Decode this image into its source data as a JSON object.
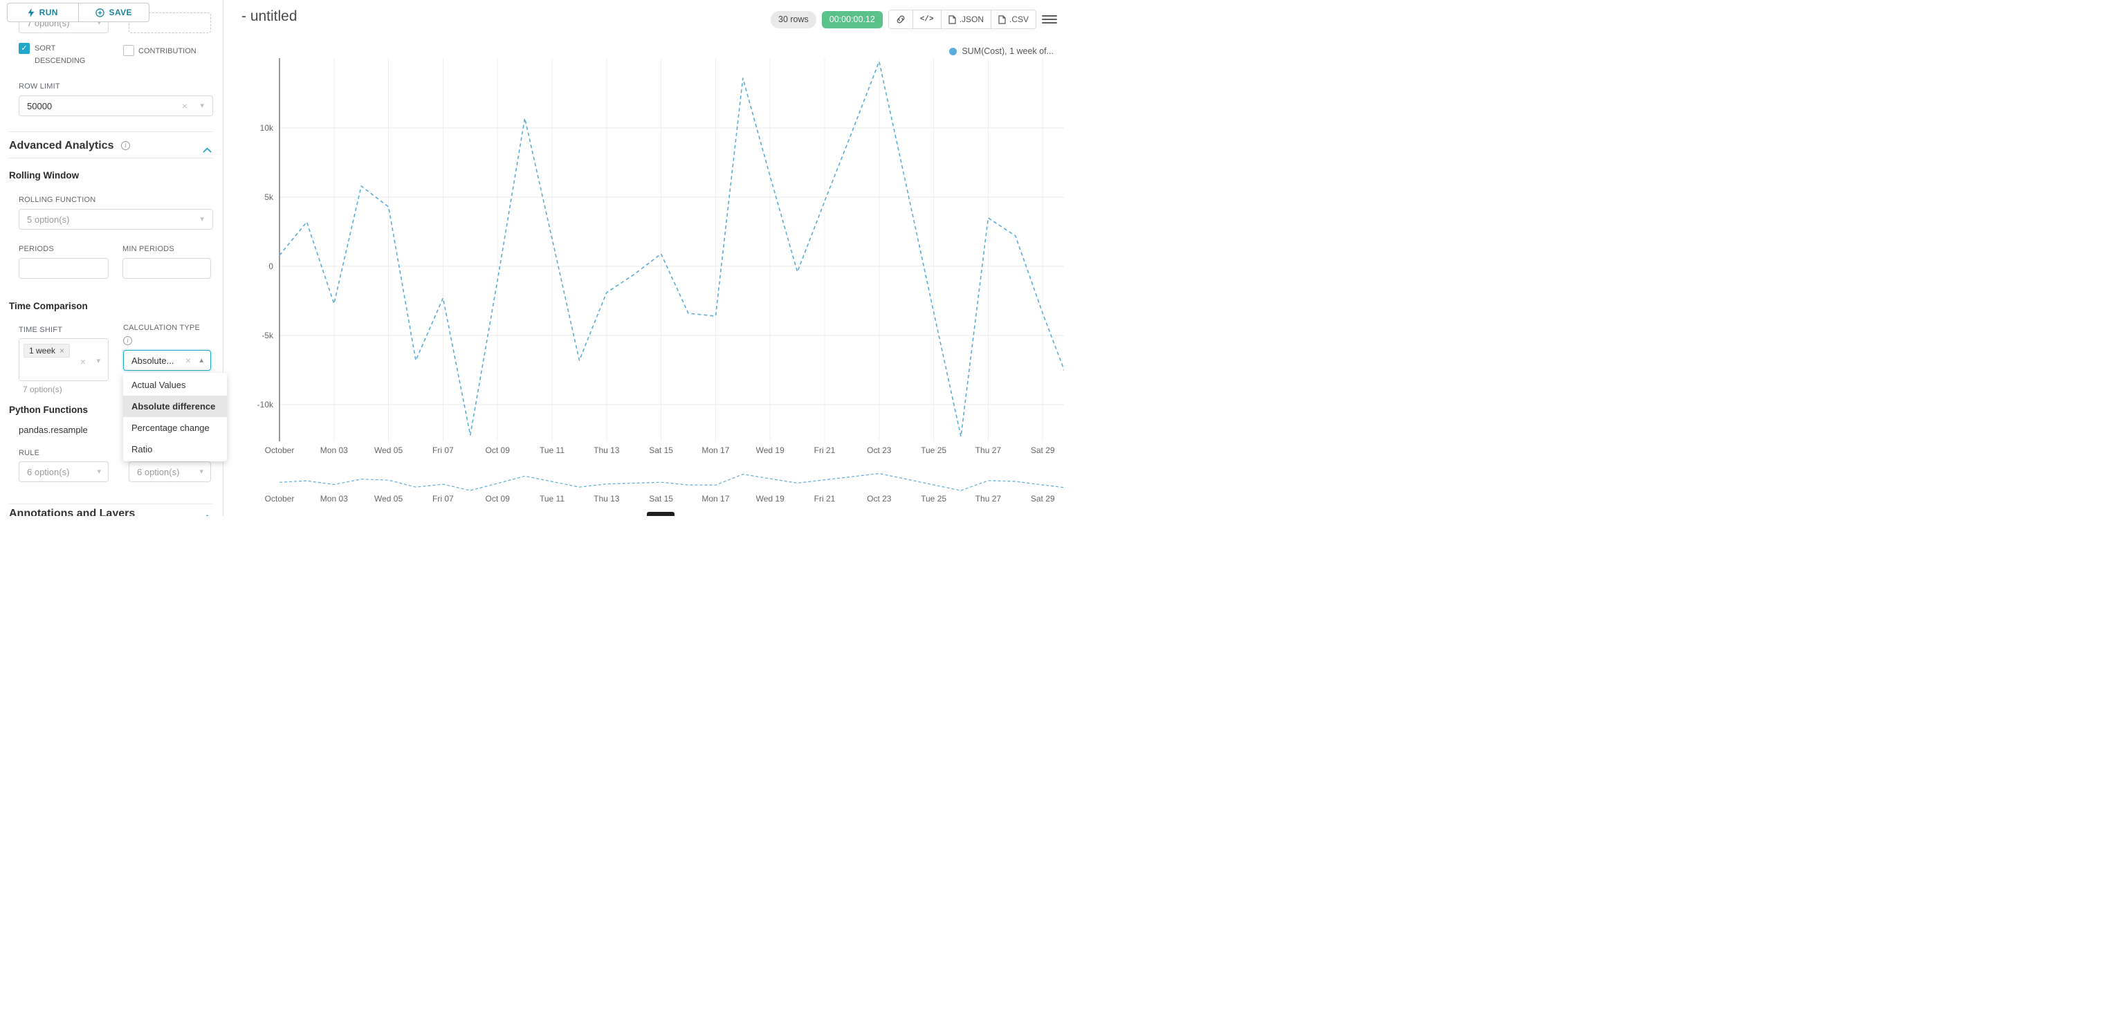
{
  "colors": {
    "accent": "#20a7c9",
    "accent_dark": "#1985a0",
    "success": "#5ac189",
    "series_line": "#5BACD8"
  },
  "sidebar": {
    "run_label": "RUN",
    "save_label": "SAVE",
    "top_partial_value": "7 option(s)",
    "sort_descending_label": "SORT DESCENDING",
    "contribution_label": "CONTRIBUTION",
    "row_limit_label": "ROW LIMIT",
    "row_limit_value": "50000",
    "advanced_analytics_title": "Advanced Analytics",
    "rolling_window_title": "Rolling Window",
    "rolling_function_label": "ROLLING FUNCTION",
    "rolling_function_value": "5 option(s)",
    "periods_label": "PERIODS",
    "min_periods_label": "MIN PERIODS",
    "time_comparison_title": "Time Comparison",
    "time_shift_label": "TIME SHIFT",
    "time_shift_tag": "1 week",
    "time_shift_helper": "7 option(s)",
    "calculation_type_label": "CALCULATION TYPE",
    "calculation_type_value": "Absolute...",
    "calculation_type_options": [
      "Actual Values",
      "Absolute difference",
      "Percentage change",
      "Ratio"
    ],
    "calculation_type_selected": "Absolute difference",
    "python_functions_title": "Python Functions",
    "python_function_name": "pandas.resample",
    "rule_label": "RULE",
    "rule_value": "6 option(s)",
    "method_value": "6 option(s)",
    "annotations_title": "Annotations and Layers"
  },
  "main": {
    "title": "- untitled",
    "rows_badge": "30 rows",
    "timer_badge": "00:00:00.12",
    "json_label": ".JSON",
    "csv_label": ".CSV"
  },
  "chart_data": {
    "type": "line",
    "title": "",
    "x_unit": "day of October",
    "x_days": [
      1,
      2,
      3,
      4,
      5,
      6,
      7,
      8,
      9,
      10,
      11,
      12,
      13,
      14,
      15,
      16,
      17,
      18,
      19,
      20,
      21,
      22,
      23,
      24,
      25,
      26,
      27,
      28,
      29,
      30
    ],
    "series": [
      {
        "name": "SUM(Cost), 1 week of...",
        "color": "#5BACD8",
        "line_style": "dashed",
        "values": [
          800,
          3200,
          -2700,
          5800,
          4300,
          -6800,
          -2300,
          -12200,
          -1000,
          10700,
          2000,
          -6800,
          -1900,
          -600,
          900,
          -3400,
          -3600,
          13600,
          6500,
          -400,
          4700,
          9700,
          14800,
          5800,
          -3300,
          -12300,
          3500,
          2200,
          -3400,
          -8600
        ]
      }
    ],
    "x_tick_labels": [
      "October",
      "Mon 03",
      "Wed 05",
      "Fri 07",
      "Oct 09",
      "Tue 11",
      "Thu 13",
      "Sat 15",
      "Mon 17",
      "Wed 19",
      "Fri 21",
      "Oct 23",
      "Tue 25",
      "Thu 27",
      "Sat 29"
    ],
    "x_tick_day_indices": [
      0,
      2,
      4,
      6,
      8,
      10,
      12,
      14,
      16,
      18,
      20,
      22,
      24,
      26,
      28
    ],
    "y_ticks": [
      {
        "label": "10k",
        "value": 10000
      },
      {
        "label": "5k",
        "value": 5000
      },
      {
        "label": "0",
        "value": 0
      },
      {
        "label": "-5k",
        "value": -5000
      },
      {
        "label": "-10k",
        "value": -10000
      }
    ],
    "ylim": [
      -13000,
      15200
    ],
    "grid": true,
    "legend_position": "top-right",
    "mini_preview": true
  }
}
